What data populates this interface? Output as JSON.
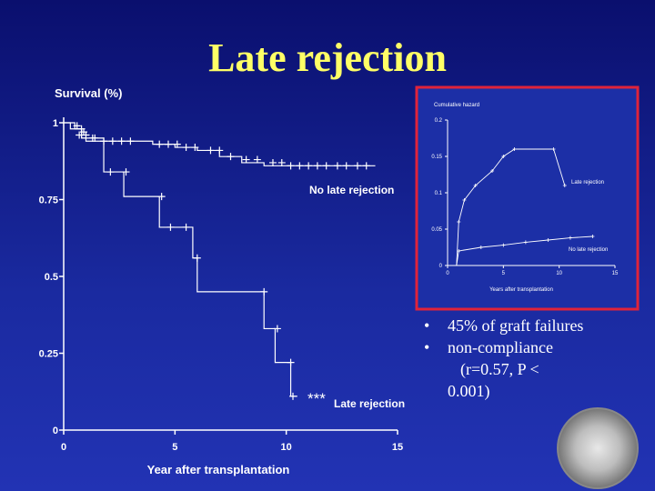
{
  "title": "Late rejection",
  "bullets": {
    "b1": "45% of graft failures",
    "b2": "non-compliance",
    "b3": "(r=0.57, P <",
    "b4": "0.001)"
  },
  "chart_data": [
    {
      "type": "line",
      "ylabel": "Survival (%)",
      "xlabel": "Year after transplantation",
      "xlim": [
        0,
        15
      ],
      "ylim": [
        0,
        1
      ],
      "xticks": [
        "0",
        "5",
        "10",
        "15"
      ],
      "yticks": [
        "0",
        "0.25",
        "0.5",
        "0.75",
        "1"
      ],
      "significance": "***",
      "series": [
        {
          "name": "No late rejection",
          "color": "#ffffff",
          "steps": [
            [
              0,
              1
            ],
            [
              0.5,
              0.98
            ],
            [
              0.8,
              0.95
            ],
            [
              1.0,
              0.94
            ],
            [
              2.0,
              0.94
            ],
            [
              4.0,
              0.93
            ],
            [
              5.0,
              0.92
            ],
            [
              6.0,
              0.91
            ],
            [
              7.0,
              0.89
            ],
            [
              8.0,
              0.87
            ],
            [
              9.0,
              0.86
            ],
            [
              14.0,
              0.86
            ]
          ],
          "censored": [
            [
              0.6,
              0.99
            ],
            [
              0.8,
              0.98
            ],
            [
              0.9,
              0.97
            ],
            [
              1.0,
              0.96
            ],
            [
              1.3,
              0.95
            ],
            [
              1.8,
              0.94
            ],
            [
              2.2,
              0.94
            ],
            [
              2.6,
              0.94
            ],
            [
              3.0,
              0.94
            ],
            [
              4.3,
              0.93
            ],
            [
              4.7,
              0.93
            ],
            [
              5.1,
              0.93
            ],
            [
              5.5,
              0.92
            ],
            [
              5.9,
              0.92
            ],
            [
              6.6,
              0.91
            ],
            [
              7.0,
              0.91
            ],
            [
              7.5,
              0.89
            ],
            [
              8.2,
              0.88
            ],
            [
              8.7,
              0.88
            ],
            [
              9.4,
              0.87
            ],
            [
              9.8,
              0.87
            ],
            [
              10.2,
              0.86
            ],
            [
              10.6,
              0.86
            ],
            [
              11.0,
              0.86
            ],
            [
              11.4,
              0.86
            ],
            [
              11.8,
              0.86
            ],
            [
              12.3,
              0.86
            ],
            [
              12.7,
              0.86
            ],
            [
              13.2,
              0.86
            ],
            [
              13.6,
              0.86
            ]
          ]
        },
        {
          "name": "Late rejection",
          "color": "#ffffff",
          "steps": [
            [
              0,
              1
            ],
            [
              0.3,
              0.98
            ],
            [
              0.8,
              0.95
            ],
            [
              1.8,
              0.84
            ],
            [
              2.7,
              0.76
            ],
            [
              4.3,
              0.66
            ],
            [
              5.8,
              0.56
            ],
            [
              6.0,
              0.45
            ],
            [
              9.0,
              0.33
            ],
            [
              9.5,
              0.22
            ],
            [
              10.2,
              0.11
            ],
            [
              10.5,
              0.11
            ]
          ],
          "censored": [
            [
              0.7,
              0.96
            ],
            [
              1.4,
              0.95
            ],
            [
              2.1,
              0.84
            ],
            [
              2.8,
              0.84
            ],
            [
              4.4,
              0.76
            ],
            [
              4.8,
              0.66
            ],
            [
              5.5,
              0.66
            ],
            [
              6.0,
              0.56
            ],
            [
              9.0,
              0.45
            ],
            [
              9.6,
              0.33
            ],
            [
              10.2,
              0.22
            ],
            [
              10.3,
              0.11
            ]
          ]
        }
      ]
    },
    {
      "type": "line",
      "ylabel": "Cumulative hazard",
      "xlabel": "Years after transplantation",
      "xlim": [
        0,
        15
      ],
      "ylim": [
        0,
        0.2
      ],
      "xticks": [
        "0",
        "5",
        "10",
        "15"
      ],
      "yticks": [
        "0",
        "0.05",
        "0.1",
        "0.15",
        "0.2"
      ],
      "series": [
        {
          "name": "Late rejection",
          "color": "#ffffff",
          "points": [
            [
              1.0,
              0.06
            ],
            [
              1.5,
              0.09
            ],
            [
              2.5,
              0.11
            ],
            [
              4.0,
              0.13
            ],
            [
              5.0,
              0.15
            ],
            [
              6.0,
              0.16
            ],
            [
              9.5,
              0.16
            ],
            [
              10.5,
              0.11
            ]
          ]
        },
        {
          "name": "No late rejection",
          "color": "#ffffff",
          "points": [
            [
              1.0,
              0.02
            ],
            [
              3.0,
              0.025
            ],
            [
              5.0,
              0.028
            ],
            [
              7.0,
              0.032
            ],
            [
              9.0,
              0.035
            ],
            [
              11.0,
              0.038
            ],
            [
              13.0,
              0.04
            ]
          ]
        }
      ]
    }
  ]
}
